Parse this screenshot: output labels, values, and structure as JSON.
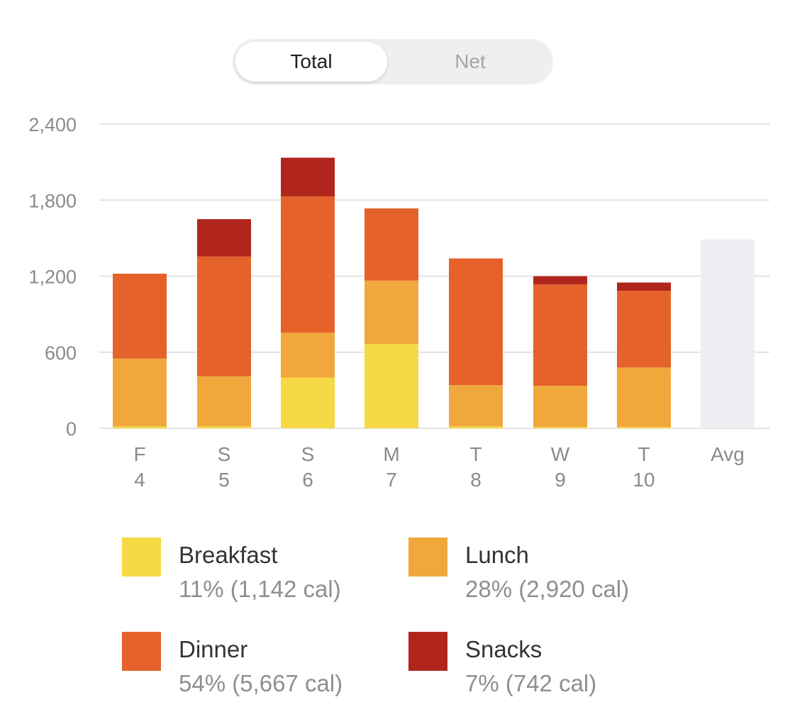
{
  "toggle": {
    "total_label": "Total",
    "net_label": "Net",
    "selected": "Total"
  },
  "colors": {
    "breakfast": "#f6d945",
    "lunch": "#f0a83c",
    "dinner": "#e5622a",
    "snacks": "#b0261c",
    "avg": "#eeeef3",
    "grid": "#e3e3e3"
  },
  "chart_data": {
    "type": "bar",
    "stacked": true,
    "y_ticks": [
      "0",
      "600",
      "1,200",
      "1,800",
      "2,400"
    ],
    "ylim": [
      0,
      2400
    ],
    "grid": true,
    "categories": [
      {
        "day": "F",
        "date": "4"
      },
      {
        "day": "S",
        "date": "5"
      },
      {
        "day": "S",
        "date": "6"
      },
      {
        "day": "M",
        "date": "7"
      },
      {
        "day": "T",
        "date": "8"
      },
      {
        "day": "W",
        "date": "9"
      },
      {
        "day": "T",
        "date": "10"
      },
      {
        "day": "Avg",
        "date": ""
      }
    ],
    "series": [
      {
        "name": "Breakfast",
        "color_key": "breakfast",
        "values": [
          15,
          15,
          400,
          665,
          15,
          10,
          10,
          0
        ]
      },
      {
        "name": "Lunch",
        "color_key": "lunch",
        "values": [
          535,
          395,
          355,
          500,
          325,
          325,
          470,
          0
        ]
      },
      {
        "name": "Dinner",
        "color_key": "dinner",
        "values": [
          670,
          945,
          1075,
          570,
          1000,
          800,
          605,
          0
        ]
      },
      {
        "name": "Snacks",
        "color_key": "snacks",
        "values": [
          0,
          295,
          305,
          0,
          0,
          65,
          65,
          0
        ]
      }
    ],
    "avg_value": 1490
  },
  "legend": [
    {
      "name": "Breakfast",
      "stat": "11% (1,142 cal)",
      "color_key": "breakfast"
    },
    {
      "name": "Lunch",
      "stat": "28% (2,920 cal)",
      "color_key": "lunch"
    },
    {
      "name": "Dinner",
      "stat": "54% (5,667 cal)",
      "color_key": "dinner"
    },
    {
      "name": "Snacks",
      "stat": "7% (742 cal)",
      "color_key": "snacks"
    }
  ]
}
